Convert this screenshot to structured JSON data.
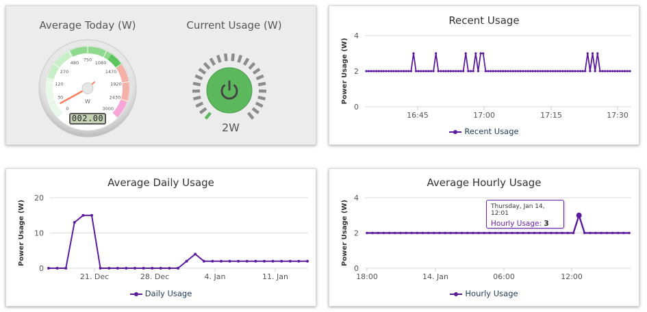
{
  "gauges": {
    "average_today": {
      "title": "Average Today (W)",
      "unit": "W",
      "odometer": "002.00",
      "value": 2,
      "ticks": [
        "0",
        "30",
        "120",
        "270",
        "480",
        "750",
        "1080",
        "1470",
        "1920",
        "2430",
        "3000"
      ]
    },
    "current_usage": {
      "title": "Current Usage (W)",
      "value_text": "2W",
      "value_fraction": 0.03,
      "button_icon": "power-icon",
      "accent_color": "#5cb85c"
    }
  },
  "recent": {
    "title": "Recent Usage",
    "legend": "Recent Usage",
    "chart_data": {
      "type": "line",
      "ylabel": "Power Usage (W)",
      "ylim": [
        0,
        4
      ],
      "yticks": [
        "0",
        "2",
        "4"
      ],
      "xticks": [
        "16:45",
        "17:00",
        "17:15",
        "17:30"
      ],
      "series": [
        {
          "name": "Recent Usage",
          "color": "#5b1a9e",
          "values": [
            2,
            2,
            2,
            2,
            2,
            2,
            2,
            2,
            2,
            2,
            2,
            2,
            2,
            2,
            2,
            2,
            2,
            2,
            2,
            3,
            2,
            2,
            2,
            2,
            2,
            2,
            2,
            2,
            3,
            2,
            2,
            2,
            2,
            2,
            2,
            2,
            2,
            2,
            2,
            2,
            3,
            2,
            2,
            2,
            3,
            2,
            3,
            3,
            2,
            2,
            2,
            2,
            2,
            2,
            2,
            2,
            2,
            2,
            2,
            2,
            2,
            2,
            2,
            2,
            2,
            2,
            2,
            2,
            2,
            2,
            2,
            2,
            2,
            2,
            2,
            2,
            2,
            2,
            2,
            2,
            2,
            2,
            2,
            2,
            2,
            2,
            2,
            2,
            2,
            3,
            2,
            3,
            2,
            3,
            2,
            2,
            2,
            2,
            2,
            2,
            2,
            2,
            2,
            2,
            2,
            2,
            2
          ]
        }
      ]
    }
  },
  "daily": {
    "title": "Average Daily Usage",
    "legend": "Daily Usage",
    "chart_data": {
      "type": "line",
      "ylabel": "Power Usage (W)",
      "ylim": [
        0,
        20
      ],
      "yticks": [
        "0",
        "10",
        "20"
      ],
      "xticks": [
        "21. Dec",
        "28. Dec",
        "4. Jan",
        "11. Jan"
      ],
      "series": [
        {
          "name": "Daily Usage",
          "color": "#5b1a9e",
          "values": [
            0,
            0,
            0,
            13,
            15,
            15,
            0,
            0,
            0,
            0,
            0,
            0,
            0,
            0,
            0,
            0,
            2,
            4,
            2,
            2,
            2,
            2,
            2,
            2,
            2,
            2,
            2,
            2,
            2,
            2,
            2
          ]
        }
      ]
    }
  },
  "hourly": {
    "title": "Average Hourly Usage",
    "legend": "Hourly Usage",
    "tooltip": {
      "date": "Thursday, Jan 14, 12:01",
      "label": "Hourly Usage:",
      "value": "3"
    },
    "chart_data": {
      "type": "line",
      "ylabel": "Power Usage (W)",
      "ylim": [
        0,
        4
      ],
      "yticks": [
        "0",
        "2",
        "4"
      ],
      "xticks": [
        "18:00",
        "14. Jan",
        "06:00",
        "12:00"
      ],
      "series": [
        {
          "name": "Hourly Usage",
          "color": "#5b1a9e",
          "values": [
            2,
            2,
            2,
            2,
            2,
            2,
            2,
            2,
            2,
            2,
            2,
            2,
            2,
            2,
            2,
            2,
            2,
            2,
            2,
            2,
            2,
            2,
            2,
            2,
            2,
            2,
            2,
            2,
            2,
            2,
            2,
            2,
            2,
            2,
            2,
            2,
            2,
            2,
            3,
            2,
            2,
            2,
            2,
            2,
            2,
            2,
            2,
            2
          ]
        }
      ]
    }
  }
}
